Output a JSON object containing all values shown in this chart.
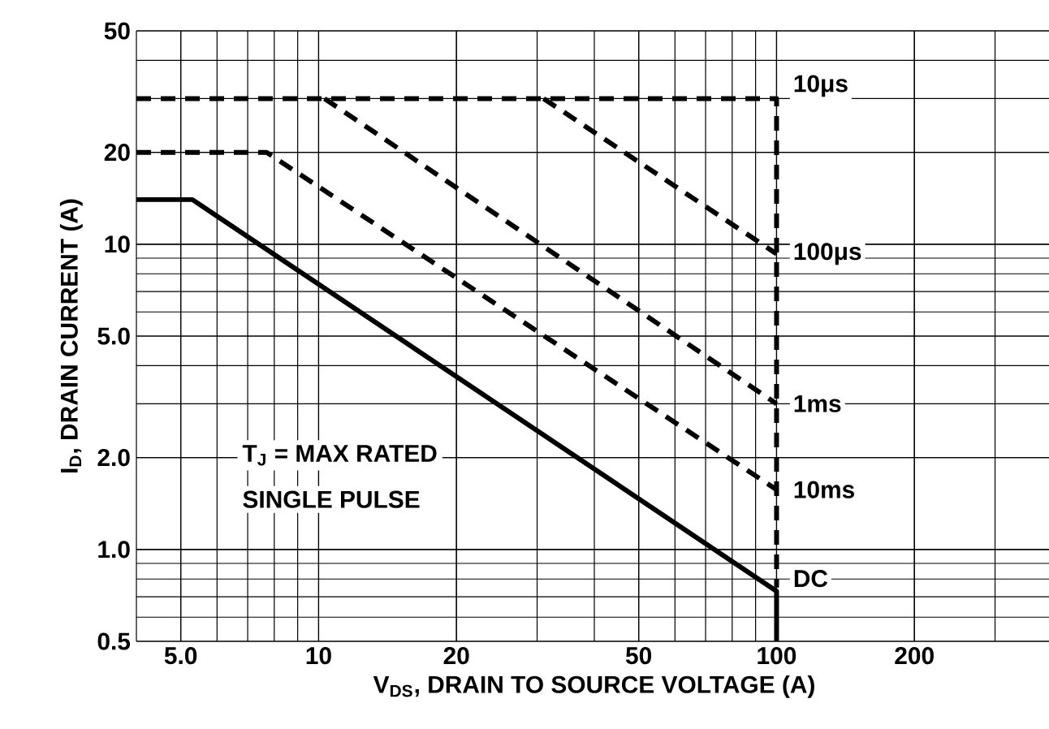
{
  "chart_data": {
    "type": "line",
    "xlabel": "V$_{DS}$, DRAIN TO SOURCE VOLTAGE (A)",
    "ylabel": "I$_{D}$, DRAIN CURRENT (A)",
    "log": "xy",
    "grid": true,
    "legend": false,
    "marker": "none",
    "xlim": [
      4,
      400
    ],
    "ylim": [
      0.5,
      50
    ],
    "xticks": [
      {
        "value": 5,
        "label": "5.0"
      },
      10,
      20,
      50,
      100,
      200
    ],
    "yticks": [
      0.5,
      {
        "value": 1,
        "label": "1.0"
      },
      {
        "value": 2,
        "label": "2.0"
      },
      {
        "value": 5,
        "label": "5.0"
      },
      10,
      20,
      50
    ],
    "series": [
      {
        "name": "10μs",
        "color": "#000000",
        "line_style": "dashed",
        "x": [
          4,
          100,
          100
        ],
        "values": [
          30,
          30,
          0.75
        ]
      },
      {
        "name": "100μs",
        "color": "#000000",
        "line_style": "dashed",
        "x": [
          31,
          100
        ],
        "values": [
          30,
          9.3
        ]
      },
      {
        "name": "1ms",
        "color": "#000000",
        "line_style": "dashed",
        "x": [
          10.3,
          100
        ],
        "values": [
          30,
          3.0
        ]
      },
      {
        "name": "10ms",
        "color": "#000000",
        "line_style": "dashed",
        "x": [
          4,
          7.7,
          100
        ],
        "values": [
          20,
          20,
          1.57
        ]
      },
      {
        "name": "DC",
        "color": "#000000",
        "line_style": "solid",
        "x": [
          4,
          5.3,
          100,
          100
        ],
        "values": [
          14,
          14,
          0.73,
          0.5
        ]
      }
    ],
    "annotations": [
      "T$_{J}$ = MAX RATED",
      "SINGLE PULSE"
    ]
  }
}
